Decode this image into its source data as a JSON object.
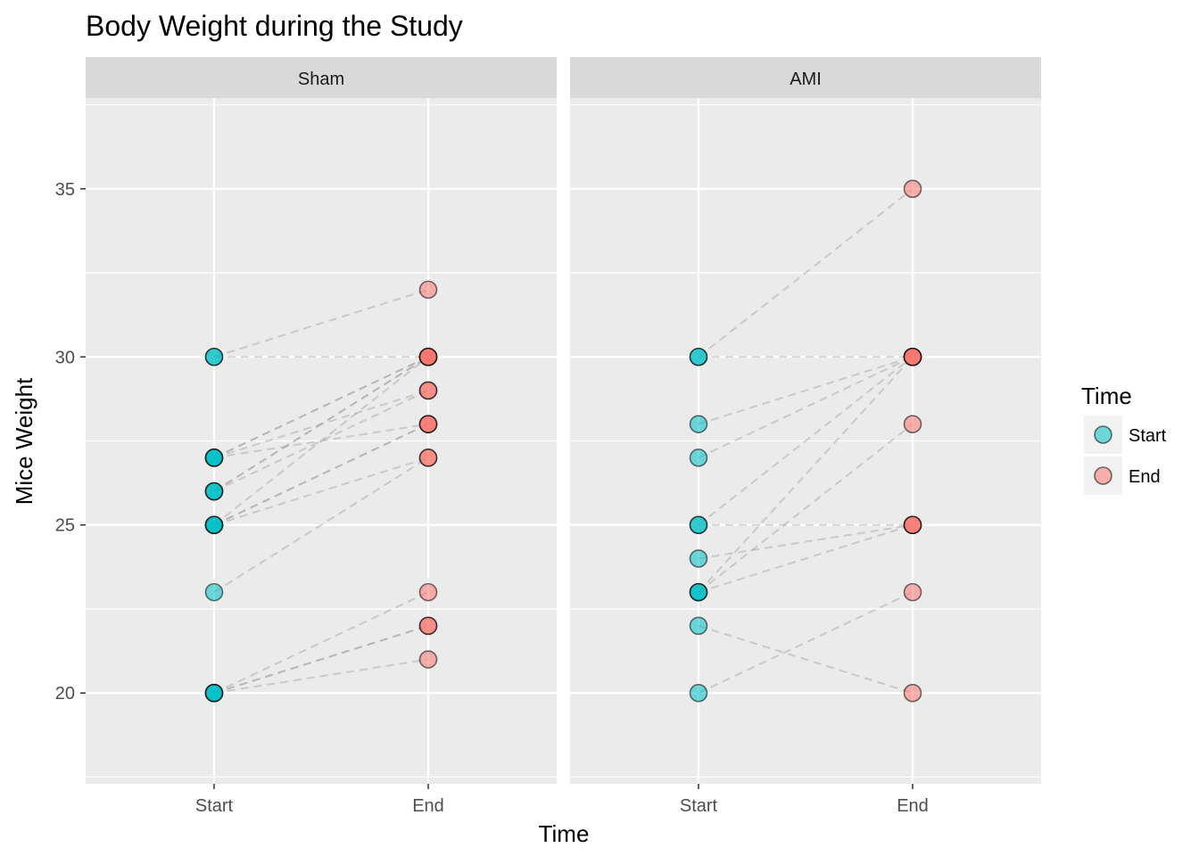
{
  "chart_data": {
    "type": "scatter",
    "title": "Body Weight during the Study",
    "xlabel": "Time",
    "ylabel": "Mice Weight",
    "categories": [
      "Start",
      "End"
    ],
    "ylim": [
      17.3,
      37.7
    ],
    "yticks": [
      20,
      25,
      30,
      35
    ],
    "grid": true,
    "legend": {
      "title": "Time",
      "position": "right",
      "entries": [
        {
          "label": "Start",
          "color": "#00BFC4"
        },
        {
          "label": "End",
          "color": "#F8766D"
        }
      ]
    },
    "panels": [
      {
        "name": "Sham",
        "pairs": [
          {
            "start": 30,
            "end": 32
          },
          {
            "start": 30,
            "end": 30
          },
          {
            "start": 27,
            "end": 30
          },
          {
            "start": 27,
            "end": 30
          },
          {
            "start": 27,
            "end": 29
          },
          {
            "start": 27,
            "end": 28
          },
          {
            "start": 26,
            "end": 30
          },
          {
            "start": 26,
            "end": 30
          },
          {
            "start": 26,
            "end": 29
          },
          {
            "start": 25,
            "end": 28
          },
          {
            "start": 25,
            "end": 28
          },
          {
            "start": 25,
            "end": 27
          },
          {
            "start": 25,
            "end": 30
          },
          {
            "start": 23,
            "end": 27
          },
          {
            "start": 20,
            "end": 23
          },
          {
            "start": 20,
            "end": 22
          },
          {
            "start": 20,
            "end": 22
          },
          {
            "start": 20,
            "end": 21
          }
        ]
      },
      {
        "name": "AMI",
        "pairs": [
          {
            "start": 30,
            "end": 35
          },
          {
            "start": 30,
            "end": 30
          },
          {
            "start": 28,
            "end": 30
          },
          {
            "start": 27,
            "end": 30
          },
          {
            "start": 25,
            "end": 30
          },
          {
            "start": 25,
            "end": 25
          },
          {
            "start": 24,
            "end": 25
          },
          {
            "start": 23,
            "end": 28
          },
          {
            "start": 23,
            "end": 25
          },
          {
            "start": 23,
            "end": 30
          },
          {
            "start": 22,
            "end": 20
          },
          {
            "start": 20,
            "end": 23
          }
        ]
      }
    ]
  }
}
